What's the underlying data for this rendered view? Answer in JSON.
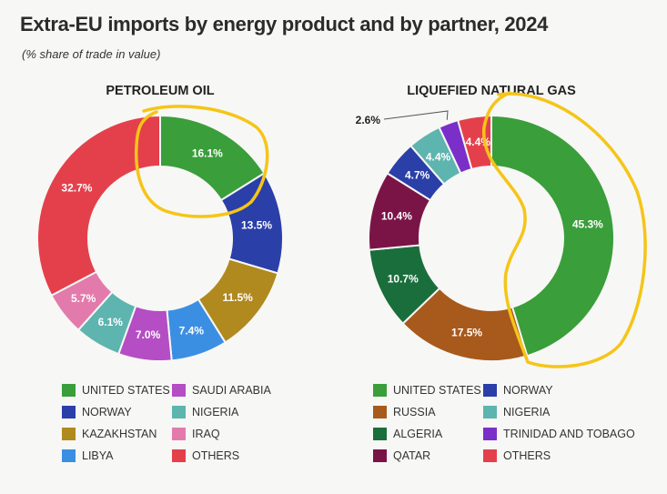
{
  "header": {
    "title": "Extra-EU imports by energy product and by partner, 2024",
    "subtitle": "(% share of trade in value)"
  },
  "chart_data": [
    {
      "type": "pie",
      "title": "PETROLEUM OIL",
      "donut": true,
      "categories": [
        "UNITED STATES",
        "NORWAY",
        "KAZAKHSTAN",
        "LIBYA",
        "SAUDI ARABIA",
        "NIGERIA",
        "IRAQ",
        "OTHERS"
      ],
      "values": [
        16.1,
        13.5,
        11.5,
        7.4,
        7.0,
        6.1,
        5.7,
        32.7
      ],
      "value_labels": [
        "16.1%",
        "13.5%",
        "11.5%",
        "7.4%",
        "7.0%",
        "6.1%",
        "5.7%",
        "32.7%"
      ],
      "colors": [
        "#3a9e3a",
        "#2b3fa8",
        "#b0891f",
        "#3b8fe3",
        "#b54dc4",
        "#5eb4ae",
        "#e27bab",
        "#e4404b"
      ],
      "legend": [
        "UNITED STATES",
        "SAUDI ARABIA",
        "NORWAY",
        "NIGERIA",
        "KAZAKHSTAN",
        "IRAQ",
        "LIBYA",
        "OTHERS"
      ],
      "legend_placement": "bottom"
    },
    {
      "type": "pie",
      "title": "LIQUEFIED NATURAL GAS",
      "donut": true,
      "categories": [
        "UNITED STATES",
        "RUSSIA",
        "ALGERIA",
        "QATAR",
        "NORWAY",
        "NIGERIA",
        "TRINIDAD AND TOBAGO",
        "OTHERS"
      ],
      "values": [
        45.3,
        17.5,
        10.7,
        10.4,
        4.7,
        4.4,
        2.6,
        4.4
      ],
      "value_labels": [
        "45.3%",
        "17.5%",
        "10.7%",
        "10.4%",
        "4.7%",
        "4.4%",
        "2.6%",
        "4.4%"
      ],
      "colors": [
        "#3a9e3a",
        "#a8591c",
        "#1a6e3c",
        "#7a1447",
        "#2b3fa8",
        "#5eb4ae",
        "#7a2fc9",
        "#e4404b"
      ],
      "legend": [
        "UNITED STATES",
        "NORWAY",
        "RUSSIA",
        "NIGERIA",
        "ALGERIA",
        "TRINIDAD AND TOBAGO",
        "QATAR",
        "OTHERS"
      ],
      "legend_placement": "bottom"
    }
  ],
  "annotation": {
    "color": "#f5c518",
    "shape": "hand-drawn circle",
    "highlights": [
      "UNITED STATES"
    ]
  }
}
